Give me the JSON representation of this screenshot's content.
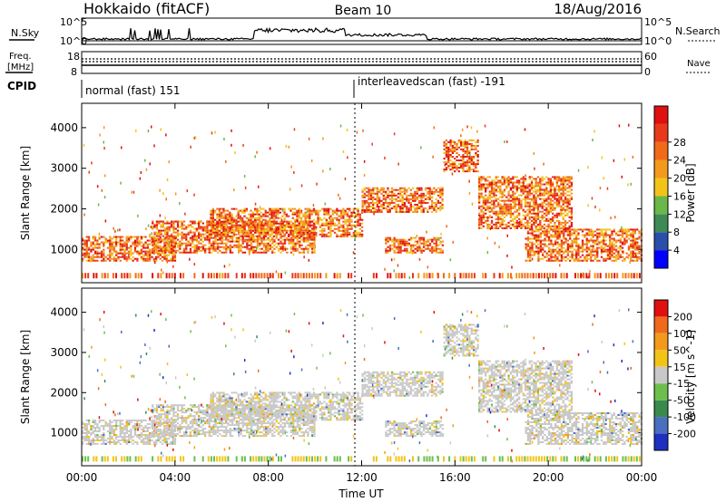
{
  "header": {
    "title_left": "Hokkaido (fitACF)",
    "title_center": "Beam 10",
    "title_right": "18/Aug/2016"
  },
  "labels": {
    "nsky": "N.Sky",
    "nsearch": "N.Search",
    "freq_line1": "Freq.",
    "freq_line2": "[MHz]",
    "nave": "Nave",
    "cpid": "CPID",
    "cpid_mode_1": "normal (fast) 151",
    "cpid_mode_2": "interleavedscan (fast) -191"
  },
  "chart_data": [
    {
      "type": "line",
      "panel": "noise",
      "left_axis": {
        "ticks": [
          "10^5",
          "10^0"
        ]
      },
      "right_axis": {
        "ticks": [
          "10^5",
          "10^0"
        ]
      }
    },
    {
      "type": "line",
      "panel": "frequency-nave",
      "left_axis": {
        "ticks": [
          "18",
          "8"
        ]
      },
      "right_axis": {
        "ticks": [
          "60",
          "0"
        ]
      }
    },
    {
      "type": "heatmap",
      "panel": "power",
      "ylabel": "Slant Range [km]",
      "yticks": [
        1000,
        2000,
        3000,
        4000
      ],
      "ylim": [
        180,
        4600
      ],
      "xlim": [
        0,
        24
      ],
      "xticks": [
        "00:00",
        "04:00",
        "08:00",
        "12:00",
        "16:00",
        "20:00",
        "00:00"
      ],
      "colorbar": {
        "label": "Power [dB]",
        "ticks": [
          4,
          8,
          12,
          16,
          20,
          24,
          28
        ],
        "colors": [
          "#0000ff",
          "#2a4faa",
          "#3d8a55",
          "#6ab74a",
          "#f2c418",
          "#f39a1c",
          "#f16a1a",
          "#e83a1b",
          "#e01010"
        ]
      },
      "echo_bands": [
        {
          "t_start": 0.0,
          "t_end": 4.0,
          "r_start": 700,
          "r_end": 1300
        },
        {
          "t_start": 3.0,
          "t_end": 10.0,
          "r_start": 900,
          "r_end": 1700
        },
        {
          "t_start": 5.5,
          "t_end": 12.0,
          "r_start": 1300,
          "r_end": 2000
        },
        {
          "t_start": 12.0,
          "t_end": 15.5,
          "r_start": 1900,
          "r_end": 2500
        },
        {
          "t_start": 15.5,
          "t_end": 17.0,
          "r_start": 2900,
          "r_end": 3700
        },
        {
          "t_start": 17.0,
          "t_end": 21.0,
          "r_start": 1500,
          "r_end": 2800
        },
        {
          "t_start": 19.0,
          "t_end": 24.0,
          "r_start": 700,
          "r_end": 1500
        },
        {
          "t_start": 13.0,
          "t_end": 15.5,
          "r_start": 900,
          "r_end": 1300
        }
      ]
    },
    {
      "type": "heatmap",
      "panel": "velocity",
      "ylabel": "Slant Range [km]",
      "yticks": [
        1000,
        2000,
        3000,
        4000
      ],
      "ylim": [
        180,
        4600
      ],
      "xlim": [
        0,
        24
      ],
      "xlabel": "Time UT",
      "xticks": [
        "00:00",
        "04:00",
        "08:00",
        "12:00",
        "16:00",
        "20:00",
        "00:00"
      ],
      "colorbar": {
        "label": "Velocity [m s^-1]",
        "ticks": [
          "200",
          "100",
          "50",
          "15",
          "-15",
          "-50",
          "-100",
          "-200"
        ],
        "colors": [
          "#1f2fbf",
          "#4a6fc0",
          "#3a8a4e",
          "#6cbf4c",
          "#c8c8c8",
          "#f2c418",
          "#f39a1c",
          "#f06a1a",
          "#e01010"
        ]
      }
    }
  ]
}
